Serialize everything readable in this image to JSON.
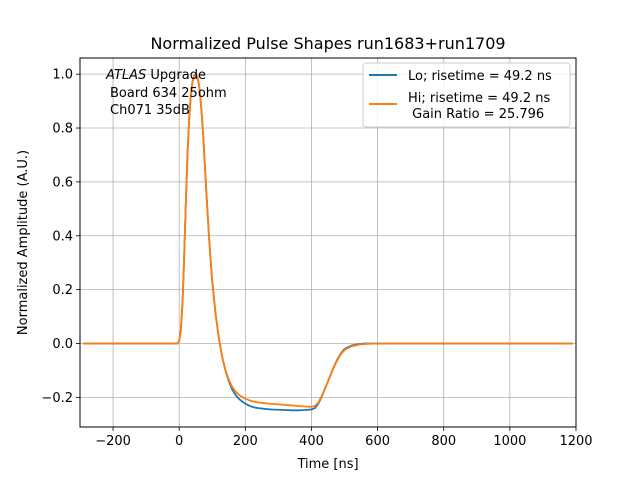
{
  "chart_data": {
    "type": "line",
    "title": "Normalized Pulse Shapes run1683+run1709",
    "xlabel": "Time [ns]",
    "ylabel": "Normalized Amplitude (A.U.)",
    "xlim": [
      -300,
      1200
    ],
    "ylim": [
      -0.31,
      1.06
    ],
    "xticks": [
      -200,
      0,
      200,
      400,
      600,
      800,
      1000,
      1200
    ],
    "xtick_labels": [
      "−200",
      "0",
      "200",
      "400",
      "600",
      "800",
      "1000",
      "1200"
    ],
    "yticks": [
      -0.2,
      0.0,
      0.2,
      0.4,
      0.6,
      0.8,
      1.0
    ],
    "ytick_labels": [
      "−0.2",
      "0.0",
      "0.2",
      "0.4",
      "0.6",
      "0.8",
      "1.0"
    ],
    "grid": true,
    "legend_position": "top-right",
    "annotation": {
      "line1_italic": "ATLAS",
      "line1_rest": " Upgrade",
      "line2": "Board 634 25ohm",
      "line3": "Ch071 35dB"
    },
    "series": [
      {
        "name": "Lo; risetime = 49.2 ns",
        "color": "#1f77b4",
        "x": [
          -290,
          -250,
          -200,
          -150,
          -100,
          -50,
          -5,
          0,
          5,
          10,
          15,
          20,
          25,
          30,
          35,
          40,
          45,
          50,
          55,
          60,
          65,
          70,
          75,
          80,
          85,
          90,
          95,
          100,
          110,
          120,
          130,
          140,
          150,
          160,
          170,
          180,
          190,
          200,
          210,
          220,
          230,
          240,
          260,
          280,
          300,
          320,
          340,
          360,
          380,
          400,
          410,
          420,
          430,
          440,
          450,
          460,
          470,
          480,
          490,
          500,
          520,
          540,
          560,
          580,
          600,
          650,
          700,
          800,
          900,
          1000,
          1100,
          1190
        ],
        "y": [
          0.0,
          0.0,
          0.0,
          0.0,
          0.0,
          0.0,
          0.0,
          0.01,
          0.05,
          0.15,
          0.32,
          0.52,
          0.7,
          0.83,
          0.92,
          0.97,
          0.995,
          1.0,
          0.99,
          0.96,
          0.9,
          0.82,
          0.72,
          0.61,
          0.5,
          0.4,
          0.31,
          0.23,
          0.11,
          0.02,
          -0.05,
          -0.1,
          -0.14,
          -0.17,
          -0.19,
          -0.205,
          -0.215,
          -0.223,
          -0.23,
          -0.235,
          -0.238,
          -0.24,
          -0.243,
          -0.245,
          -0.246,
          -0.247,
          -0.248,
          -0.248,
          -0.247,
          -0.245,
          -0.24,
          -0.225,
          -0.2,
          -0.17,
          -0.14,
          -0.11,
          -0.08,
          -0.055,
          -0.035,
          -0.02,
          -0.008,
          -0.003,
          0.0,
          0.0,
          0.0,
          0.0,
          0.0,
          0.0,
          0.0,
          0.0,
          0.0,
          0.0
        ]
      },
      {
        "name": "Hi; risetime = 49.2 ns\n Gain Ratio = 25.796",
        "color": "#ff7f0e",
        "x": [
          -290,
          -250,
          -200,
          -150,
          -100,
          -50,
          -5,
          0,
          5,
          10,
          15,
          20,
          25,
          30,
          35,
          40,
          45,
          50,
          55,
          60,
          65,
          70,
          75,
          80,
          85,
          90,
          95,
          100,
          110,
          120,
          130,
          140,
          150,
          160,
          170,
          180,
          190,
          200,
          210,
          220,
          230,
          240,
          260,
          280,
          300,
          320,
          340,
          360,
          380,
          400,
          410,
          420,
          430,
          440,
          450,
          460,
          470,
          480,
          490,
          500,
          520,
          540,
          560,
          580,
          600,
          650,
          700,
          800,
          900,
          1000,
          1100,
          1190
        ],
        "y": [
          0.0,
          0.0,
          0.0,
          0.0,
          0.0,
          0.0,
          0.0,
          0.01,
          0.05,
          0.15,
          0.32,
          0.52,
          0.7,
          0.83,
          0.92,
          0.97,
          0.995,
          1.0,
          0.99,
          0.96,
          0.9,
          0.82,
          0.72,
          0.61,
          0.5,
          0.4,
          0.31,
          0.23,
          0.11,
          0.02,
          -0.05,
          -0.1,
          -0.135,
          -0.16,
          -0.178,
          -0.19,
          -0.198,
          -0.205,
          -0.21,
          -0.214,
          -0.217,
          -0.219,
          -0.222,
          -0.224,
          -0.226,
          -0.228,
          -0.23,
          -0.232,
          -0.234,
          -0.235,
          -0.232,
          -0.22,
          -0.198,
          -0.17,
          -0.14,
          -0.11,
          -0.082,
          -0.058,
          -0.038,
          -0.024,
          -0.011,
          -0.005,
          -0.002,
          -0.001,
          0.0,
          0.0,
          0.0,
          0.0,
          0.0,
          0.0,
          0.0,
          0.0
        ]
      }
    ]
  }
}
